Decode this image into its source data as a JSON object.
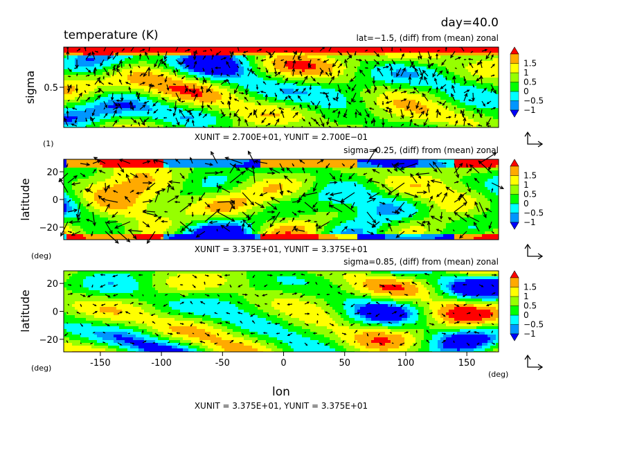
{
  "chart_data": {
    "type": "heatmap",
    "day_label": "day=40.0",
    "title": "temperature (K)",
    "xlabel": "lon",
    "x_unit_label": "(deg)",
    "x_ticks": [
      "-150",
      "-100",
      "-50",
      "0",
      "50",
      "100",
      "150"
    ],
    "x_tick_values": [
      -150,
      -100,
      -50,
      0,
      50,
      100,
      150
    ],
    "xlim": [
      -180,
      176
    ],
    "footer": "XUNIT = 3.375E+01, YUNIT = 3.375E+01",
    "colorbar": {
      "labels": [
        "1.5",
        "1",
        "0.5",
        "0",
        "−0.5",
        "−1"
      ],
      "colors": [
        "#0000ff",
        "#0096ff",
        "#00ffff",
        "#00ff00",
        "#96ff00",
        "#ffff00",
        "#ffaa00",
        "#ff0000"
      ],
      "levels": [
        -1.25,
        -1.0,
        -0.5,
        0,
        0.5,
        1.0,
        1.5
      ]
    },
    "panels": [
      {
        "id": "sigma-section",
        "subtitle": "lat=−1.5, (diff) from (mean) zonal",
        "ylabel": "sigma",
        "y_unit_label": "(1)",
        "y_ticks": [
          "0.5"
        ],
        "y_tick_values": [
          0.5
        ],
        "ylim": [
          1.0,
          0.0
        ],
        "unit_text": "XUNIT = 2.700E+01, YUNIT = 2.700E−01"
      },
      {
        "id": "sigma-025",
        "subtitle": "sigma=0.25, (diff) from (mean) zonal",
        "ylabel": "latitude",
        "y_unit_label": "(deg)",
        "y_ticks": [
          "20",
          "0",
          "−20"
        ],
        "y_tick_values": [
          20,
          0,
          -20
        ],
        "ylim": [
          -29,
          29
        ],
        "unit_text": "XUNIT = 3.375E+01, YUNIT = 3.375E+01"
      },
      {
        "id": "sigma-085",
        "subtitle": "sigma=0.85, (diff) from (mean) zonal",
        "ylabel": "latitude",
        "y_unit_label": "(deg)",
        "y_ticks": [
          "20",
          "0",
          "−20"
        ],
        "y_tick_values": [
          20,
          0,
          -20
        ],
        "ylim": [
          -29,
          29
        ]
      }
    ]
  }
}
